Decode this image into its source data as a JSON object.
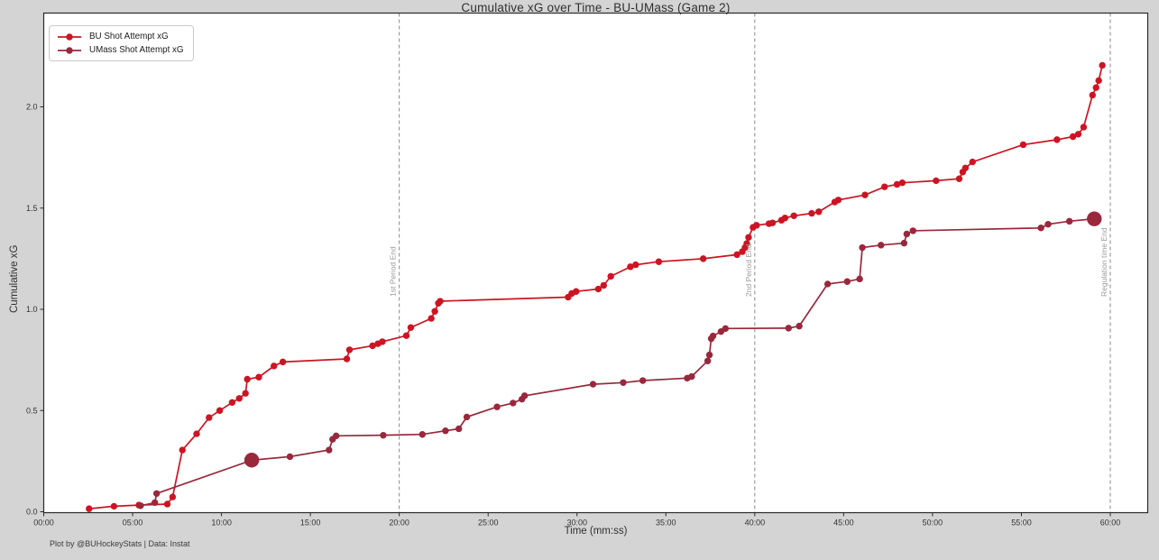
{
  "title": "Cumulative xG over Time - BU-UMass (Game 2)",
  "attribution": "Plot by @BUHockeyStats | Data: Instat",
  "colors": {
    "figure_background": "#d4d4d4",
    "plot_background": "#ffffff",
    "axis_border": "#2a2a2a",
    "tick_text": "#333333",
    "event_line": "#888888",
    "event_label": "#9a9a9a",
    "bu_red": "#cd1423",
    "umass_maroon": "#99283c"
  },
  "chart_data": {
    "type": "line",
    "title": "Cumulative xG over Time - BU-UMass (Game 2)",
    "xlabel": "Time (mm:ss)",
    "ylabel": "Cumulative xG",
    "grid": false,
    "legend_position": "upper-left",
    "x_unit": "minutes",
    "xlim_minutes": [
      0,
      62.1
    ],
    "ylim": [
      0,
      2.46
    ],
    "x_ticks": [
      {
        "minutes": 0,
        "label": "00:00"
      },
      {
        "minutes": 5,
        "label": "05:00"
      },
      {
        "minutes": 10,
        "label": "10:00"
      },
      {
        "minutes": 15,
        "label": "15:00"
      },
      {
        "minutes": 20,
        "label": "20:00"
      },
      {
        "minutes": 25,
        "label": "25:00"
      },
      {
        "minutes": 30,
        "label": "30:00"
      },
      {
        "minutes": 35,
        "label": "35:00"
      },
      {
        "minutes": 40,
        "label": "40:00"
      },
      {
        "minutes": 45,
        "label": "45:00"
      },
      {
        "minutes": 50,
        "label": "50:00"
      },
      {
        "minutes": 55,
        "label": "55:00"
      },
      {
        "minutes": 60,
        "label": "60:00"
      }
    ],
    "y_ticks": [
      {
        "value": 0.0,
        "label": "0.0"
      },
      {
        "value": 0.5,
        "label": "0.5"
      },
      {
        "value": 1.0,
        "label": "1.0"
      },
      {
        "value": 1.5,
        "label": "1.5"
      },
      {
        "value": 2.0,
        "label": "2.0"
      }
    ],
    "event_lines": [
      {
        "minutes": 20,
        "label": "1st Period End"
      },
      {
        "minutes": 40,
        "label": "2nd Period End"
      },
      {
        "minutes": 60,
        "label": "Regulation time End"
      }
    ],
    "series": [
      {
        "name": "BU Shot Attempt xG",
        "color": "#cd1423",
        "points": [
          [
            2.55,
            0.015
          ],
          [
            3.95,
            0.027
          ],
          [
            5.35,
            0.033
          ],
          [
            6.95,
            0.038
          ],
          [
            7.25,
            0.073
          ],
          [
            7.8,
            0.305
          ],
          [
            8.6,
            0.385
          ],
          [
            9.3,
            0.465
          ],
          [
            9.9,
            0.5
          ],
          [
            10.6,
            0.54
          ],
          [
            11.0,
            0.56
          ],
          [
            11.35,
            0.585
          ],
          [
            11.45,
            0.655
          ],
          [
            12.1,
            0.665
          ],
          [
            12.95,
            0.72
          ],
          [
            13.45,
            0.74
          ],
          [
            17.05,
            0.755
          ],
          [
            17.2,
            0.8
          ],
          [
            18.5,
            0.82
          ],
          [
            18.8,
            0.83
          ],
          [
            19.05,
            0.84
          ],
          [
            20.4,
            0.87
          ],
          [
            20.65,
            0.91
          ],
          [
            21.8,
            0.955
          ],
          [
            22.0,
            0.99
          ],
          [
            22.2,
            1.03
          ],
          [
            22.3,
            1.04
          ],
          [
            29.5,
            1.06
          ],
          [
            29.7,
            1.078
          ],
          [
            29.95,
            1.088
          ],
          [
            31.2,
            1.1
          ],
          [
            31.5,
            1.118
          ],
          [
            31.9,
            1.163
          ],
          [
            33.0,
            1.21
          ],
          [
            33.3,
            1.22
          ],
          [
            34.6,
            1.235
          ],
          [
            37.1,
            1.25
          ],
          [
            39.0,
            1.27
          ],
          [
            39.3,
            1.285
          ],
          [
            39.45,
            1.305
          ],
          [
            39.55,
            1.325
          ],
          [
            39.65,
            1.355
          ],
          [
            39.9,
            1.405
          ],
          [
            40.1,
            1.415
          ],
          [
            40.8,
            1.423
          ],
          [
            41.0,
            1.427
          ],
          [
            41.5,
            1.44
          ],
          [
            41.7,
            1.451
          ],
          [
            42.2,
            1.462
          ],
          [
            43.2,
            1.474
          ],
          [
            43.6,
            1.482
          ],
          [
            44.5,
            1.53
          ],
          [
            44.7,
            1.54
          ],
          [
            46.2,
            1.565
          ],
          [
            47.3,
            1.605
          ],
          [
            48.0,
            1.617
          ],
          [
            48.3,
            1.625
          ],
          [
            50.2,
            1.635
          ],
          [
            51.5,
            1.645
          ],
          [
            51.7,
            1.678
          ],
          [
            51.85,
            1.698
          ],
          [
            52.25,
            1.728
          ],
          [
            55.1,
            1.813
          ],
          [
            57.0,
            1.838
          ],
          [
            57.9,
            1.853
          ],
          [
            58.2,
            1.865
          ],
          [
            58.5,
            1.9
          ],
          [
            59.0,
            2.058
          ],
          [
            59.2,
            2.095
          ],
          [
            59.35,
            2.13
          ],
          [
            59.55,
            2.205
          ]
        ],
        "goal_points": []
      },
      {
        "name": "UMass Shot Attempt xG",
        "color": "#99283c",
        "points": [
          [
            5.45,
            0.03
          ],
          [
            6.25,
            0.045
          ],
          [
            6.35,
            0.09
          ],
          [
            11.7,
            0.255
          ],
          [
            13.85,
            0.272
          ],
          [
            16.05,
            0.305
          ],
          [
            16.25,
            0.358
          ],
          [
            16.45,
            0.375
          ],
          [
            19.1,
            0.378
          ],
          [
            21.3,
            0.382
          ],
          [
            22.6,
            0.4
          ],
          [
            23.35,
            0.41
          ],
          [
            23.8,
            0.468
          ],
          [
            25.5,
            0.518
          ],
          [
            26.4,
            0.537
          ],
          [
            26.9,
            0.556
          ],
          [
            27.05,
            0.573
          ],
          [
            30.9,
            0.63
          ],
          [
            32.6,
            0.638
          ],
          [
            33.7,
            0.648
          ],
          [
            36.2,
            0.66
          ],
          [
            36.45,
            0.668
          ],
          [
            37.35,
            0.745
          ],
          [
            37.45,
            0.775
          ],
          [
            37.55,
            0.855
          ],
          [
            37.65,
            0.868
          ],
          [
            38.1,
            0.89
          ],
          [
            38.35,
            0.905
          ],
          [
            41.9,
            0.907
          ],
          [
            42.5,
            0.917
          ],
          [
            44.1,
            1.125
          ],
          [
            45.2,
            1.137
          ],
          [
            45.9,
            1.15
          ],
          [
            46.05,
            1.305
          ],
          [
            47.1,
            1.317
          ],
          [
            48.4,
            1.327
          ],
          [
            48.55,
            1.372
          ],
          [
            48.9,
            1.388
          ],
          [
            56.1,
            1.402
          ],
          [
            56.5,
            1.42
          ],
          [
            57.7,
            1.435
          ],
          [
            59.1,
            1.447
          ]
        ],
        "goal_points": [
          [
            11.7,
            0.255
          ],
          [
            59.1,
            1.447
          ]
        ]
      }
    ]
  }
}
